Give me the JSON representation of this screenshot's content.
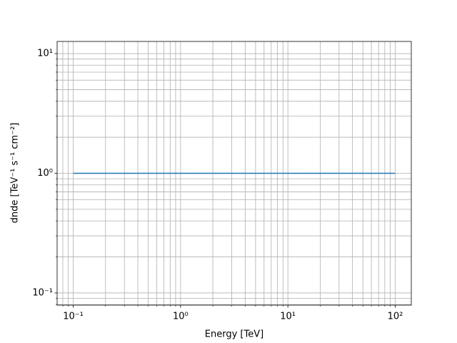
{
  "chart_data": {
    "type": "line",
    "xlabel": "Energy [TeV]",
    "ylabel": "dnde [TeV⁻¹ s⁻¹ cm⁻²]",
    "x": [
      0.1,
      100
    ],
    "series": [
      {
        "color": "#1f77b4",
        "values": [
          1,
          1
        ]
      }
    ],
    "xscale": "log",
    "yscale": "log",
    "xlim": [
      0.0708,
      141.25
    ],
    "ylim": [
      0.0791,
      12.64
    ],
    "xticks": [
      {
        "value": 0.1,
        "label": "10⁻¹"
      },
      {
        "value": 1,
        "label": "10⁰"
      },
      {
        "value": 10,
        "label": "10¹"
      },
      {
        "value": 100,
        "label": "10²"
      }
    ],
    "yticks": [
      {
        "value": 0.1,
        "label": "10⁻¹"
      },
      {
        "value": 1,
        "label": "10⁰"
      },
      {
        "value": 10,
        "label": "10¹"
      }
    ],
    "xminorticks": [
      0.08,
      0.09,
      0.2,
      0.3,
      0.4,
      0.5,
      0.6,
      0.7,
      0.8,
      0.9,
      2,
      3,
      4,
      5,
      6,
      7,
      8,
      9,
      20,
      30,
      40,
      50,
      60,
      70,
      80,
      90
    ],
    "yminorticks": [
      0.08,
      0.09,
      0.2,
      0.3,
      0.4,
      0.5,
      0.6,
      0.7,
      0.8,
      0.9,
      2,
      3,
      4,
      5,
      6,
      7,
      8,
      9
    ],
    "grid": "both"
  }
}
